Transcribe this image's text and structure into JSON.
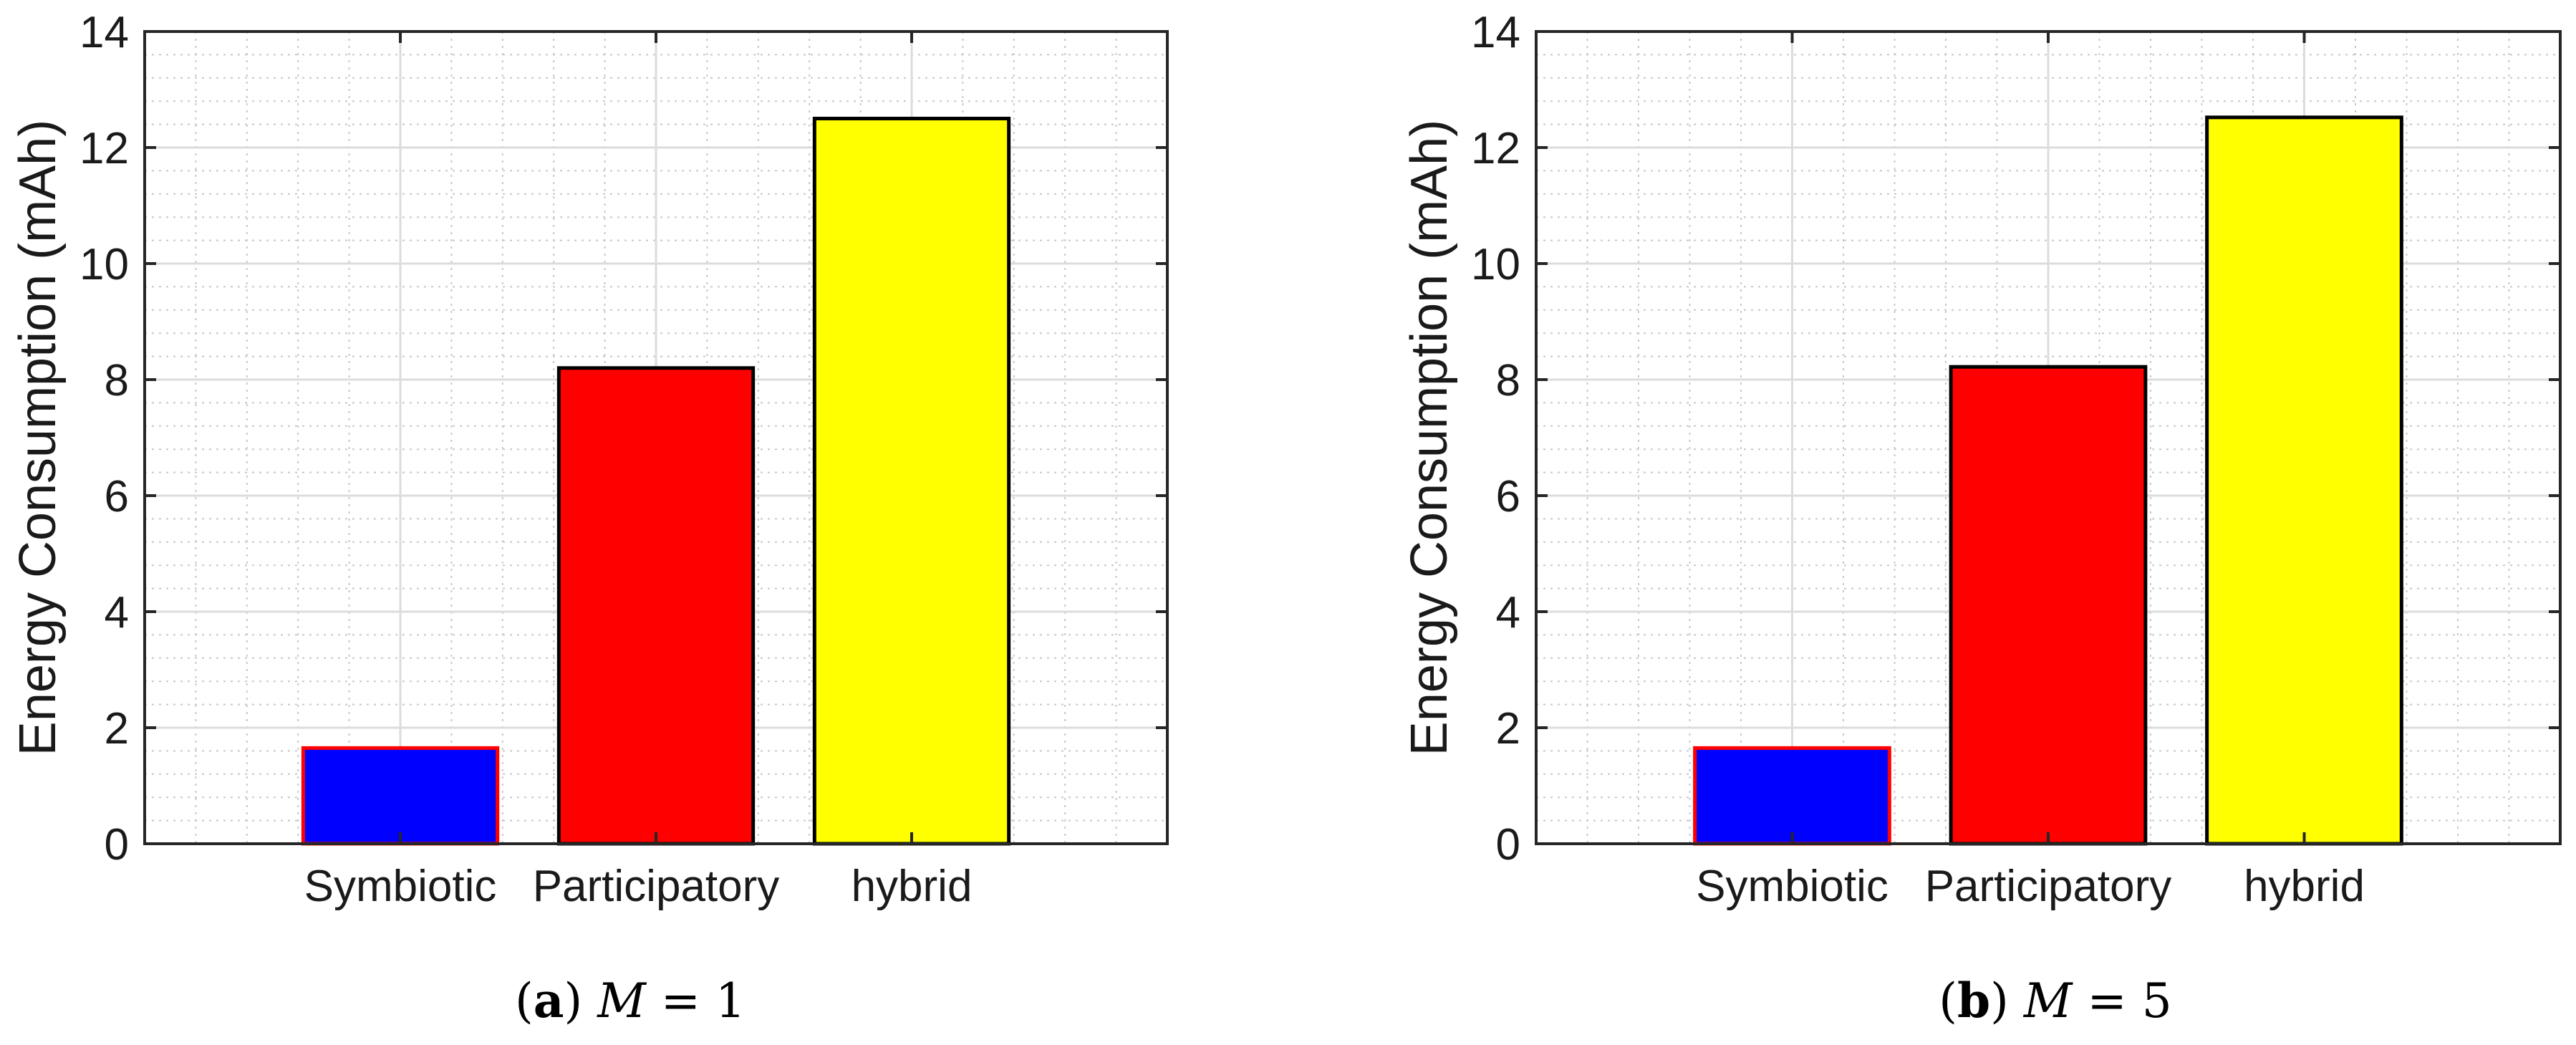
{
  "chart_data": [
    {
      "type": "bar",
      "categories": [
        "Symbiotic",
        "Participatory",
        "hybrid"
      ],
      "values": [
        1.65,
        8.2,
        12.5
      ],
      "colors": [
        "#0000ff",
        "#ff0000",
        "#ffff00"
      ],
      "edge_colors": [
        "#ff0000",
        "#000000",
        "#000000"
      ],
      "ylabel": "Energy Consumption (mAh)",
      "ylim": [
        0,
        14
      ],
      "yticks": [
        "0",
        "2",
        "4",
        "6",
        "8",
        "10",
        "12",
        "14"
      ],
      "grid": true,
      "minor_grid": true,
      "caption": {
        "tag": "a",
        "variable": "M",
        "operator": "=",
        "value": "1"
      }
    },
    {
      "type": "bar",
      "categories": [
        "Symbiotic",
        "Participatory",
        "hybrid"
      ],
      "values": [
        1.65,
        8.22,
        12.52
      ],
      "colors": [
        "#0000ff",
        "#ff0000",
        "#ffff00"
      ],
      "edge_colors": [
        "#ff0000",
        "#000000",
        "#000000"
      ],
      "ylabel": "Energy Consumption (mAh)",
      "ylim": [
        0,
        14
      ],
      "yticks": [
        "0",
        "2",
        "4",
        "6",
        "8",
        "10",
        "12",
        "14"
      ],
      "grid": true,
      "minor_grid": true,
      "caption": {
        "tag": "b",
        "variable": "M",
        "operator": "=",
        "value": "5"
      }
    }
  ]
}
